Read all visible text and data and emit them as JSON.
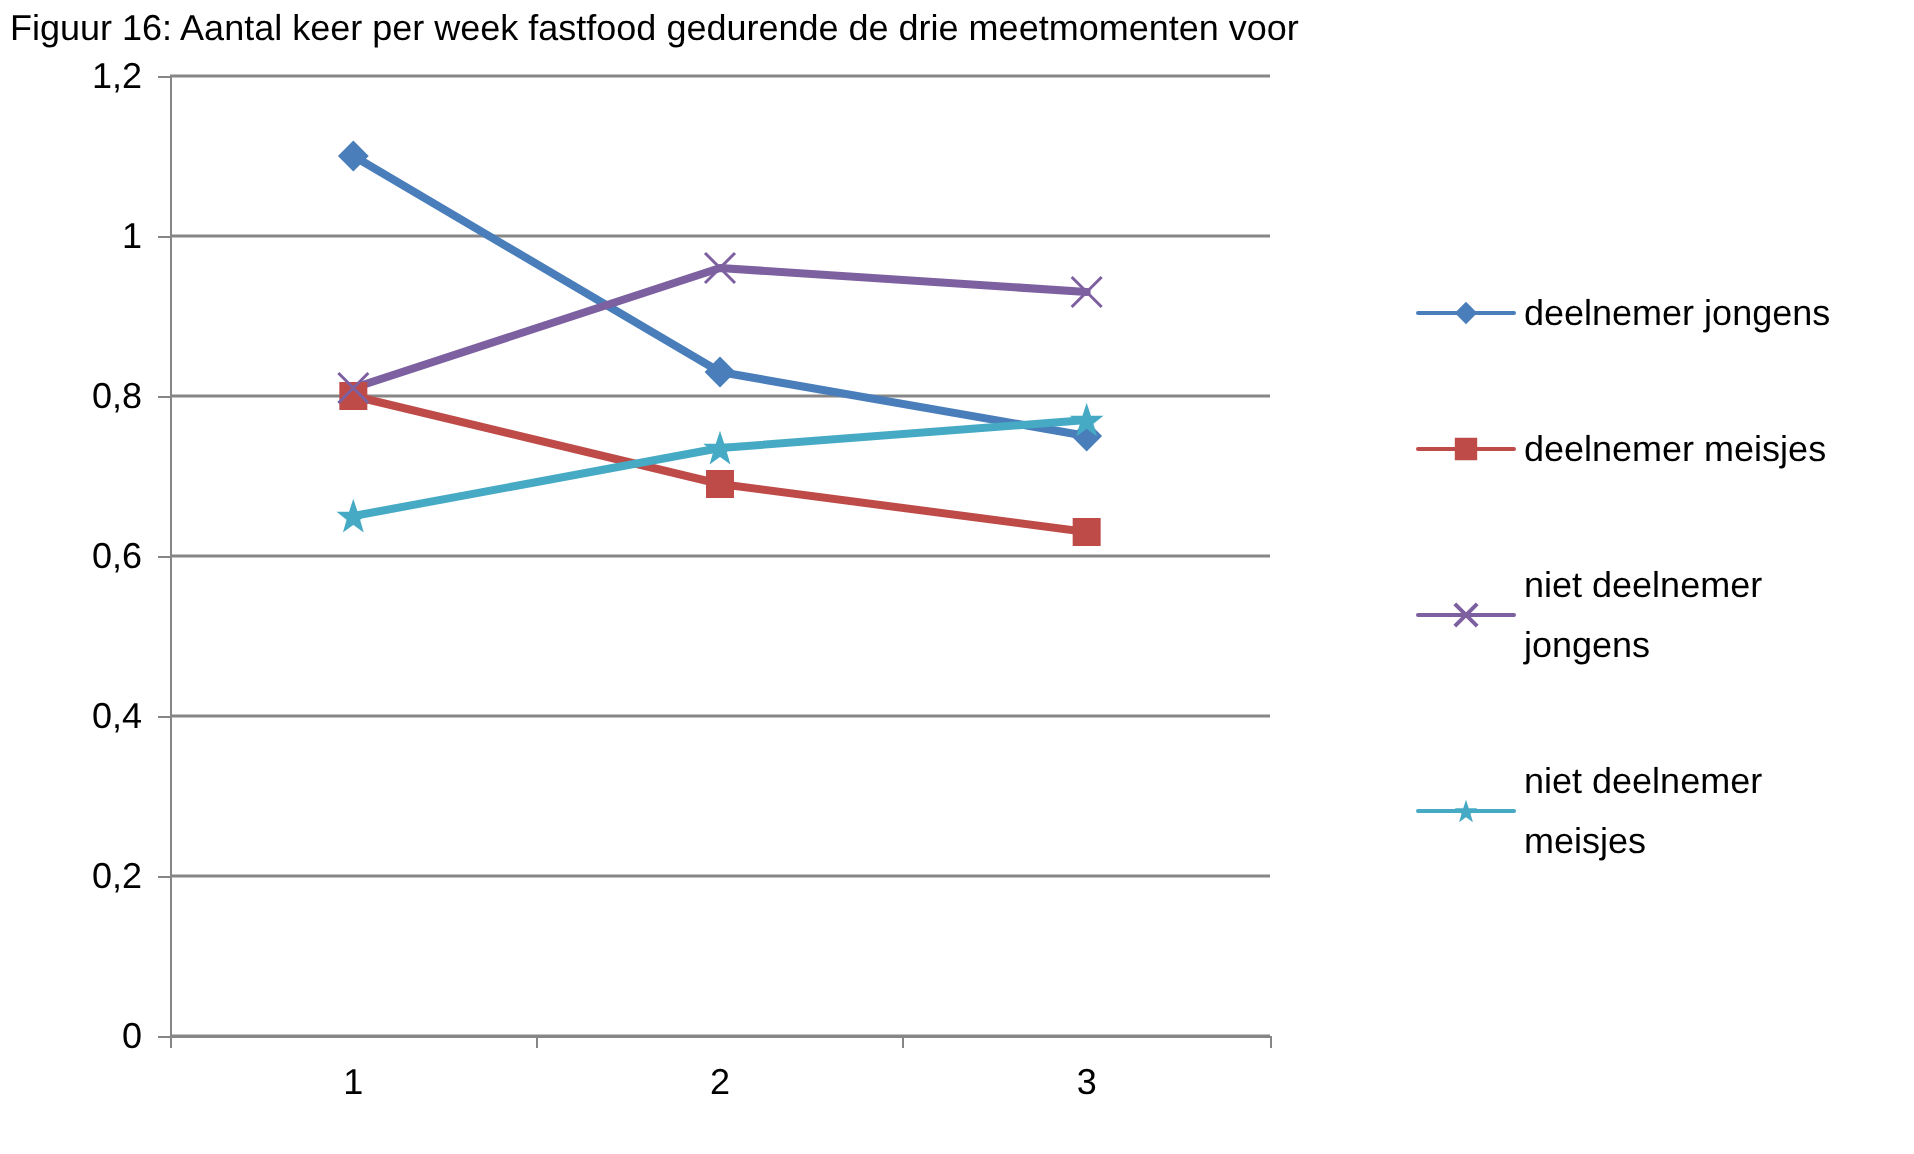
{
  "chart_data": {
    "type": "line",
    "title": "Figuur 16: Aantal keer per week fastfood gedurende de drie meetmomenten voor",
    "categories": [
      "1",
      "2",
      "3"
    ],
    "series": [
      {
        "name": "deelnemer jongens",
        "color": "#4a7ebb",
        "marker": "diamond",
        "values": [
          1.1,
          0.83,
          0.75
        ]
      },
      {
        "name": "deelnemer meisjes",
        "color": "#be4b48",
        "marker": "square",
        "values": [
          0.8,
          0.69,
          0.63
        ]
      },
      {
        "name": "niet deelnemer jongens",
        "color": "#7d60a0",
        "marker": "cross",
        "values": [
          0.81,
          0.96,
          0.93
        ]
      },
      {
        "name": "niet deelnemer meisjes",
        "color": "#46aac5",
        "marker": "star",
        "values": [
          0.65,
          0.735,
          0.77
        ]
      }
    ],
    "ylim": [
      0,
      1.2
    ],
    "yticks": [
      0,
      {
        "value": 0.2,
        "label": "0,2"
      },
      {
        "value": 0.4,
        "label": "0,4"
      },
      {
        "value": 0.6,
        "label": "0,6"
      },
      {
        "value": 0.8,
        "label": "0,8"
      },
      1,
      {
        "value": 1.2,
        "label": "1,2"
      }
    ],
    "grid": "y",
    "legend": "right",
    "line_style": "solid"
  }
}
